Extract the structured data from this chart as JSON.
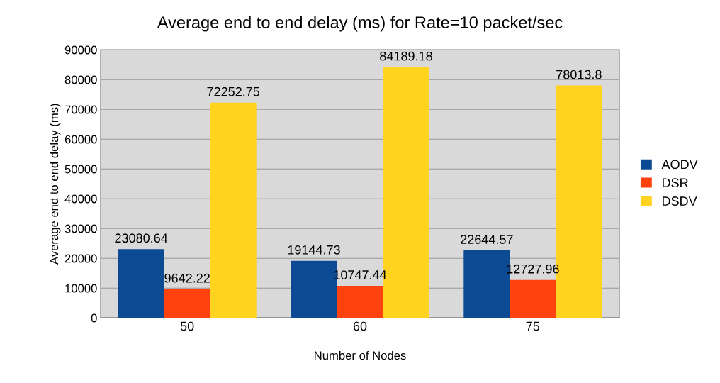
{
  "chart_data": {
    "type": "bar",
    "title": "Average end to end delay (ms) for Rate=10 packet/sec",
    "xlabel": "Number of Nodes",
    "ylabel": "Average end to end delay (ms)",
    "categories": [
      "50",
      "60",
      "75"
    ],
    "series": [
      {
        "name": "AODV",
        "color": "#0c4a94",
        "values": [
          23080.64,
          19144.73,
          22644.57
        ]
      },
      {
        "name": "DSR",
        "color": "#ff420e",
        "values": [
          9642.22,
          10747.44,
          12727.96
        ]
      },
      {
        "name": "DSDV",
        "color": "#ffd320",
        "values": [
          72252.75,
          84189.18,
          78013.8
        ]
      }
    ],
    "ylim": [
      0,
      90000
    ],
    "yticks": [
      0,
      10000,
      20000,
      30000,
      40000,
      50000,
      60000,
      70000,
      80000,
      90000
    ],
    "grid": "y",
    "legend": "right",
    "data_labels": true
  }
}
